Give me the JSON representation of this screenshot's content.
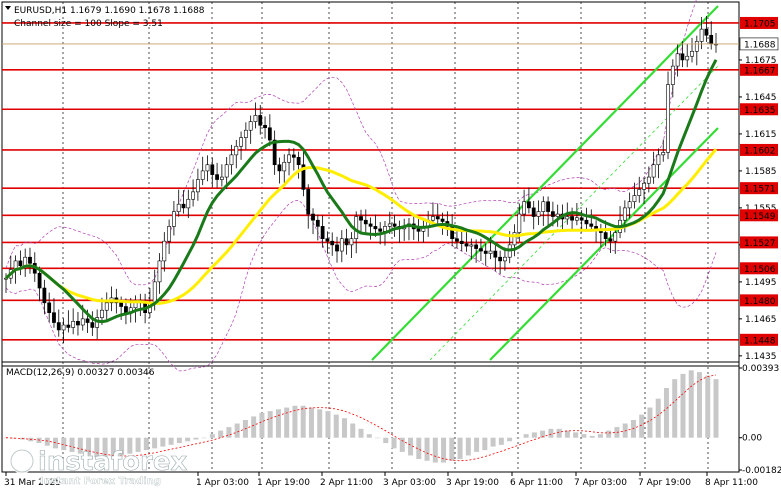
{
  "header": {
    "line1": "EURUSD,H1  1.1679 1.1690 1.1678 1.1688",
    "line2": "Channel size = 100 Slope = 3.51"
  },
  "macd": {
    "label": "MACD(12,26,9) 0.00327 0.00346",
    "scale_top": "0.00393",
    "scale_zero": "0.00",
    "scale_bottom": "-0.00182"
  },
  "price_axis": {
    "min": 1.143,
    "max": 1.1722,
    "ticks": [
      "1.1675",
      "1.1645",
      "1.1615",
      "1.1585",
      "1.1555",
      "1.1525",
      "1.1495",
      "1.1465",
      "1.1435"
    ],
    "tick_values": [
      1.1675,
      1.1645,
      1.1615,
      1.1585,
      1.1555,
      1.1525,
      1.1495,
      1.1465,
      1.1435
    ],
    "current_price": "1.1688",
    "current_value": 1.1688
  },
  "levels": [
    {
      "label": "1.1705",
      "value": 1.1705
    },
    {
      "label": "1.1667",
      "value": 1.1667
    },
    {
      "label": "1.1635",
      "value": 1.1635
    },
    {
      "label": "1.1602",
      "value": 1.1602
    },
    {
      "label": "1.1571",
      "value": 1.1571
    },
    {
      "label": "1.1549",
      "value": 1.1549
    },
    {
      "label": "1.1527",
      "value": 1.1527
    },
    {
      "label": "1.1506",
      "value": 1.1506
    },
    {
      "label": "1.1480",
      "value": 1.148
    },
    {
      "label": "1.1448",
      "value": 1.1448
    }
  ],
  "time_axis": {
    "labels": [
      "31 Mar 2025",
      "1 Apr 03:00",
      "1 Apr 19:00",
      "2 Apr 11:00",
      "3 Apr 03:00",
      "3 Apr 19:00",
      "6 Apr 11:00",
      "7 Apr 03:00",
      "7 Apr 19:00",
      "8 Apr 11:00"
    ]
  },
  "watermark": {
    "brand": "instaforex",
    "tagline": "Instant Forex Trading"
  },
  "colors": {
    "level_line": "#e00000",
    "level_label_bg": "#e00000",
    "channel": "#33dd33",
    "ma_green": "#1a7a1a",
    "ma_yellow": "#ffee00",
    "bollinger": "#b040b0",
    "macd_hist": "#c8c8c8",
    "macd_signal": "#ff0000",
    "candle": "#000000"
  },
  "chart_data": {
    "type": "candlestick",
    "symbol": "EURUSD",
    "timeframe": "H1",
    "ylim": [
      1.143,
      1.1722
    ],
    "closes": [
      1.1498,
      1.1505,
      1.1512,
      1.1508,
      1.1515,
      1.151,
      1.1502,
      1.149,
      1.1478,
      1.147,
      1.1462,
      1.1456,
      1.146,
      1.1458,
      1.1463,
      1.146,
      1.1465,
      1.1462,
      1.1458,
      1.1466,
      1.1472,
      1.1478,
      1.1482,
      1.1478,
      1.1475,
      1.147,
      1.1474,
      1.148,
      1.1478,
      1.147,
      1.1478,
      1.1495,
      1.1512,
      1.1528,
      1.154,
      1.1552,
      1.1558,
      1.1555,
      1.1562,
      1.1568,
      1.1578,
      1.1585,
      1.159,
      1.1582,
      1.1578,
      1.158,
      1.159,
      1.1598,
      1.1605,
      1.1612,
      1.1618,
      1.1625,
      1.163,
      1.1622,
      1.162,
      1.161,
      1.159,
      1.1585,
      1.1592,
      1.1598,
      1.1596,
      1.159,
      1.157,
      1.155,
      1.1545,
      1.154,
      1.153,
      1.1528,
      1.1525,
      1.152,
      1.153,
      1.1525,
      1.153,
      1.1548,
      1.1545,
      1.1542,
      1.154,
      1.1538,
      1.1536,
      1.154,
      1.1542,
      1.154,
      1.1538,
      1.154,
      1.1542,
      1.1538,
      1.1536,
      1.154,
      1.1545,
      1.1548,
      1.1546,
      1.1544,
      1.154,
      1.153,
      1.1528,
      1.1526,
      1.1524,
      1.1525,
      1.1522,
      1.152,
      1.1518,
      1.152,
      1.1515,
      1.1512,
      1.1515,
      1.1525,
      1.1535,
      1.155,
      1.156,
      1.1555,
      1.1548,
      1.1552,
      1.156,
      1.1552,
      1.1548,
      1.155,
      1.1546,
      1.1548,
      1.1545,
      1.1547,
      1.1545,
      1.1542,
      1.154,
      1.1538,
      1.1535,
      1.153,
      1.1528,
      1.1535,
      1.1545,
      1.1555,
      1.156,
      1.1565,
      1.157,
      1.1575,
      1.158,
      1.159,
      1.1598,
      1.16,
      1.1655,
      1.167,
      1.168,
      1.1675,
      1.1678,
      1.1682,
      1.169,
      1.17,
      1.1695,
      1.1688,
      1.1688
    ]
  },
  "macd_data": {
    "hist": [
      0.0,
      -5e-05,
      -0.0001,
      -0.0002,
      -0.0003,
      -0.00045,
      -0.0006,
      -0.0007,
      -0.0008,
      -0.0009,
      -0.001,
      -0.0011,
      -0.0011,
      -0.0011,
      -0.001,
      -0.0009,
      -0.0008,
      -0.0007,
      -0.0006,
      -0.0005,
      -0.0004,
      -0.0003,
      -0.0002,
      -0.0001,
      0.0,
      0.0002,
      0.0004,
      0.0006,
      0.0008,
      0.001,
      0.0012,
      0.0014,
      0.0015,
      0.0016,
      0.0017,
      0.0018,
      0.0018,
      0.0017,
      0.0016,
      0.0015,
      0.0013,
      0.0011,
      0.0008,
      0.0005,
      0.0002,
      0.0,
      -0.0003,
      -0.0006,
      -0.0008,
      -0.001,
      -0.0012,
      -0.0013,
      -0.0014,
      -0.0014,
      -0.0013,
      -0.0012,
      -0.001,
      -0.0008,
      -0.0007,
      -0.0005,
      -0.0004,
      -0.0002,
      0.0,
      0.0002,
      0.0003,
      0.0004,
      0.0005,
      0.0005,
      0.0004,
      0.0003,
      0.0002,
      0.0001,
      0.0002,
      0.0004,
      0.0006,
      0.0008,
      0.001,
      0.0013,
      0.0017,
      0.0022,
      0.0028,
      0.0033,
      0.0036,
      0.0038,
      0.0037,
      0.0035,
      0.0033
    ]
  }
}
